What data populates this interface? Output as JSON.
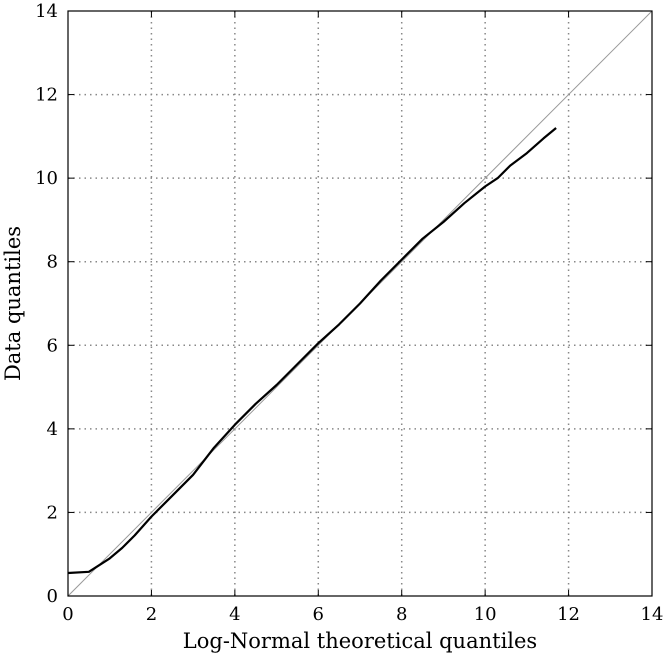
{
  "chart_data": {
    "type": "line",
    "title": "",
    "xlabel": "Log-Normal theoretical quantiles",
    "ylabel": "Data quantiles",
    "xlim": [
      0,
      14
    ],
    "ylim": [
      0,
      14
    ],
    "xticks": [
      0,
      2,
      4,
      6,
      8,
      10,
      12,
      14
    ],
    "yticks": [
      0,
      2,
      4,
      6,
      8,
      10,
      12,
      14
    ],
    "grid": true,
    "colors": {
      "series": "#000000",
      "reference": "#999999",
      "grid": "#888888"
    },
    "reference_line": {
      "x": [
        0,
        14
      ],
      "y": [
        0,
        14
      ]
    },
    "series": [
      {
        "x": [
          0,
          0.5,
          1.0,
          1.3,
          1.6,
          2.0,
          2.5,
          3.0,
          3.5,
          4.0,
          4.5,
          5.0,
          5.5,
          6.0,
          6.5,
          7.0,
          7.5,
          8.0,
          8.5,
          9.0,
          9.5,
          10.0,
          10.3,
          10.6,
          11.0,
          11.4,
          11.7
        ],
        "y": [
          0.55,
          0.58,
          0.9,
          1.15,
          1.45,
          1.9,
          2.4,
          2.9,
          3.55,
          4.1,
          4.6,
          5.05,
          5.55,
          6.05,
          6.5,
          7.0,
          7.55,
          8.05,
          8.55,
          8.95,
          9.4,
          9.8,
          10.0,
          10.3,
          10.6,
          10.95,
          11.2
        ]
      }
    ]
  }
}
